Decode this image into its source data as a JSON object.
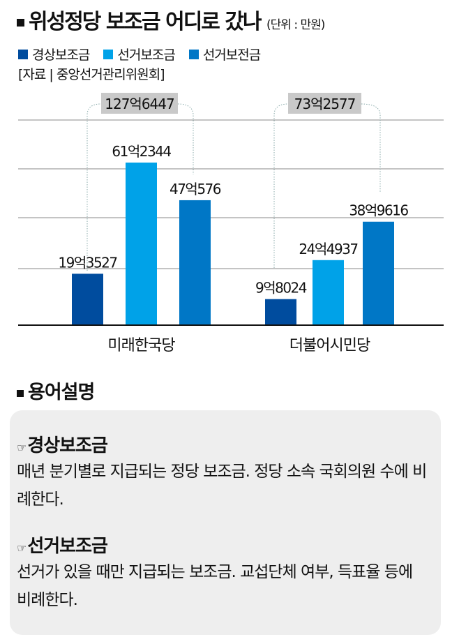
{
  "title": "위성정당 보조금 어디로 갔나",
  "unit": "(단위 : 만원)",
  "source": "[자료 | 중앙선거관리위원회]",
  "chart_data": {
    "type": "bar",
    "title": "위성정당 보조금 어디로 갔나",
    "unit": "만원",
    "categories": [
      "미래한국당",
      "더불어시민당"
    ],
    "series": [
      {
        "name": "경상보조금",
        "color": "#004c9e",
        "values": [
          193527,
          98024
        ],
        "labels": [
          "19억3527",
          "9억8024"
        ]
      },
      {
        "name": "선거보조금",
        "color": "#00a2e8",
        "values": [
          612344,
          244937
        ],
        "labels": [
          "61억2344",
          "24억4937"
        ]
      },
      {
        "name": "선거보전금",
        "color": "#0077c6",
        "values": [
          470576,
          389616
        ],
        "labels": [
          "47억576",
          "38억9616"
        ]
      }
    ],
    "totals": [
      {
        "value": 1276447,
        "label": "127억6447"
      },
      {
        "value": 732577,
        "label": "73억2577"
      }
    ],
    "ylim": [
      0,
      740000
    ],
    "grid": true,
    "legend": "top-left"
  },
  "glossary": {
    "heading": "용어설명",
    "hand_icon": "☞",
    "items": [
      {
        "term": "경상보조금",
        "desc": "매년 분기별로 지급되는 정당 보조금. 정당 소속 국회의원 수에 비례한다."
      },
      {
        "term": "선거보조금",
        "desc": "선거가 있을 때만 지급되는 보조금. 교섭단체 여부, 득표율 등에 비례한다."
      }
    ]
  }
}
